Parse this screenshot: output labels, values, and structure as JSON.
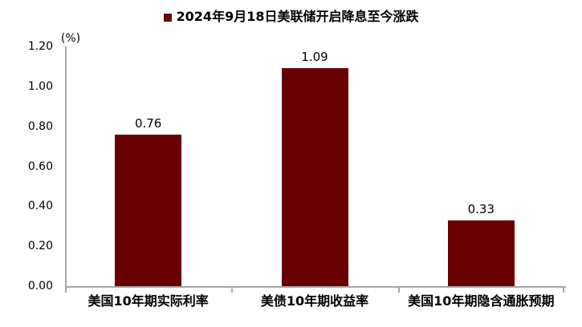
{
  "chart_data": {
    "type": "bar",
    "title": "",
    "legend": {
      "label": "2024年9月18日美联储开启降息至今涨跌",
      "swatch_color": "#690001",
      "position": "top-center"
    },
    "unit_label": "(%)",
    "categories": [
      "美国10年期实际利率",
      "美债10年期收益率",
      "美国10年期隐含通胀预期"
    ],
    "values": [
      0.76,
      1.09,
      0.33
    ],
    "value_labels": [
      "0.76",
      "1.09",
      "0.33"
    ],
    "y_ticks": [
      "1.20",
      "1.00",
      "0.80",
      "0.60",
      "0.40",
      "0.20",
      "0.00"
    ],
    "ylim": [
      0,
      1.2
    ],
    "xlabel": "",
    "ylabel": "(%)",
    "grid": false,
    "bar_color": "#690001",
    "axis_color": "#a6a6a6",
    "text_color": "#000000",
    "background_color": "#ffffff"
  }
}
